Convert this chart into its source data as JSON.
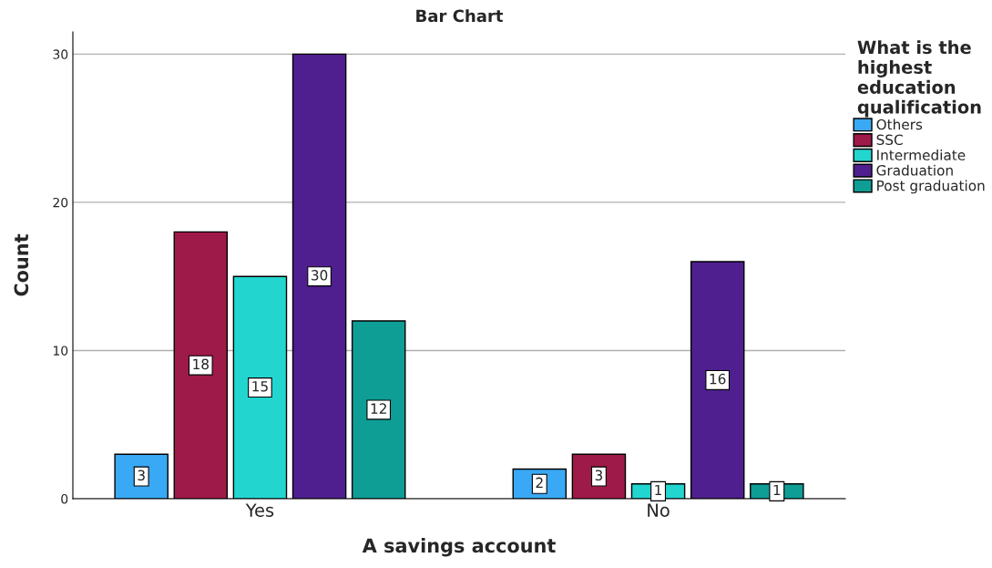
{
  "chart_data": {
    "type": "bar",
    "title": "Bar Chart",
    "xlabel": "A savings account",
    "ylabel": "Count",
    "legend_title": "What is the\nhighest\neducation\nqualification",
    "categories": [
      "Yes",
      "No"
    ],
    "series": [
      {
        "name": "Others",
        "color": "#3aa9f5",
        "values": [
          3,
          2
        ]
      },
      {
        "name": "SSC",
        "color": "#9e1a48",
        "values": [
          18,
          3
        ]
      },
      {
        "name": "Intermediate",
        "color": "#22d6cf",
        "values": [
          15,
          1
        ]
      },
      {
        "name": "Graduation",
        "color": "#4f1f8f",
        "values": [
          30,
          16
        ]
      },
      {
        "name": "Post graduation",
        "color": "#0e9e96",
        "values": [
          12,
          1
        ]
      }
    ],
    "ylim": [
      0,
      31.5
    ],
    "yticks": [
      0,
      10,
      20,
      30
    ],
    "grid": "y",
    "legend": "top right",
    "data_labels": true
  }
}
